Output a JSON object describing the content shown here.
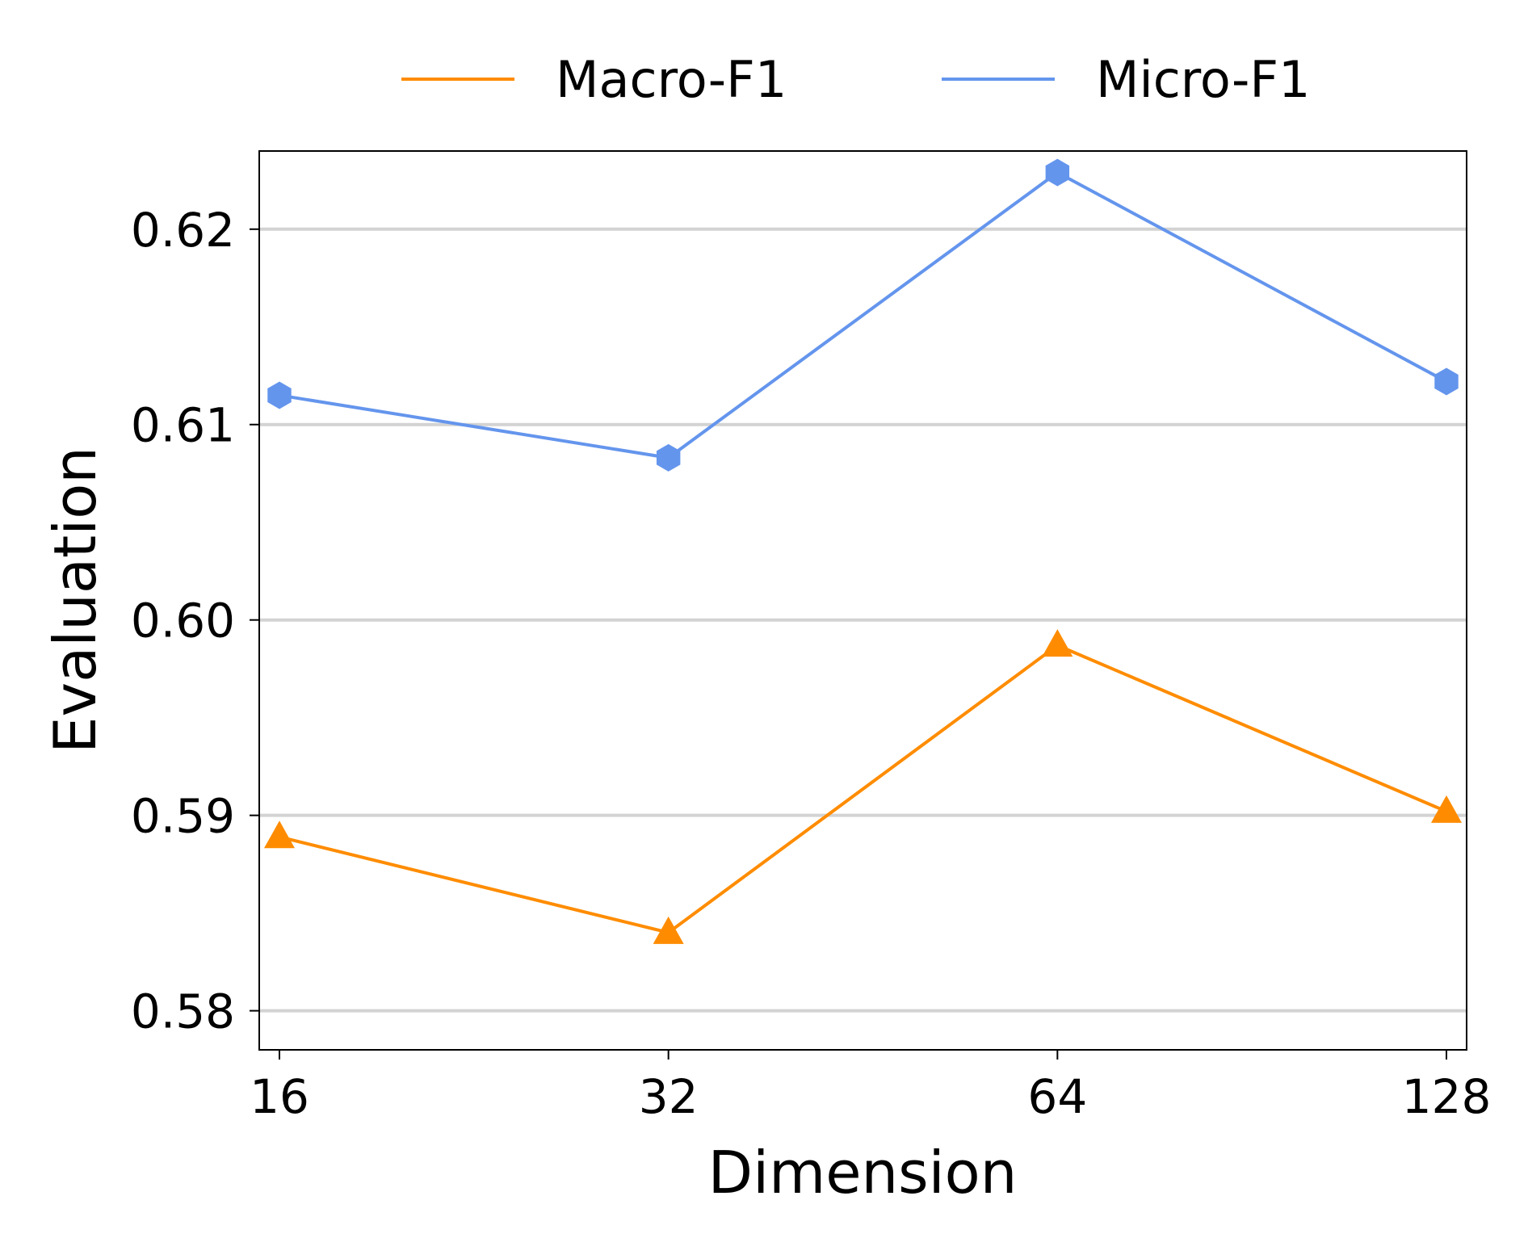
{
  "chart_data": {
    "type": "line",
    "title": "",
    "xlabel": "Dimension",
    "ylabel": "Evaluation",
    "categories": [
      "16",
      "32",
      "64",
      "128"
    ],
    "ylim": [
      0.578,
      0.624
    ],
    "yticks": [
      0.58,
      0.59,
      0.6,
      0.61,
      0.62
    ],
    "ytick_labels": [
      "0.58",
      "0.59",
      "0.60",
      "0.61",
      "0.62"
    ],
    "grid": "horizontal",
    "legend_position": "top",
    "series": [
      {
        "name": "Macro-F1",
        "color": "#ff8c00",
        "marker": "triangle",
        "values": [
          0.5889,
          0.584,
          0.5987,
          0.5902
        ]
      },
      {
        "name": "Micro-F1",
        "color": "#6495ed",
        "marker": "hexagon",
        "values": [
          0.6115,
          0.6083,
          0.6229,
          0.6122
        ]
      }
    ]
  }
}
